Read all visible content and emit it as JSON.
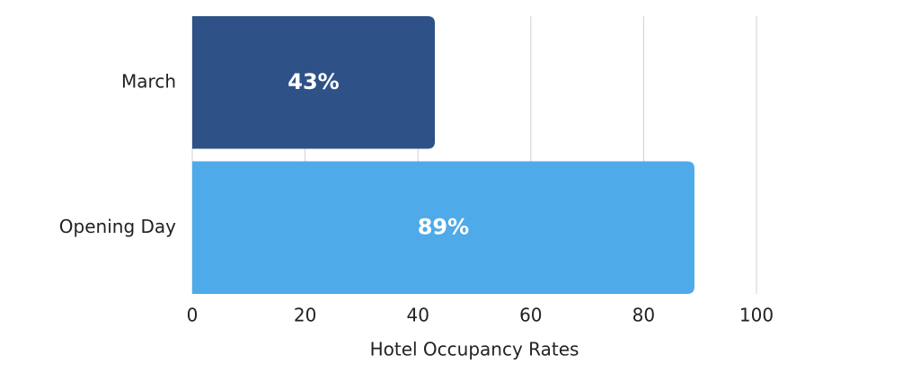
{
  "chart_data": {
    "type": "barh",
    "categories": [
      "March",
      "Opening Day"
    ],
    "values": [
      43,
      89
    ],
    "value_labels": [
      "43%",
      "89%"
    ],
    "colors": [
      "#2e5287",
      "#4eaae8"
    ],
    "xlabel": "Hotel Occupancy Rates",
    "xlim": [
      0,
      100
    ],
    "xticks": [
      0,
      20,
      40,
      60,
      80,
      100
    ],
    "grid": true
  }
}
